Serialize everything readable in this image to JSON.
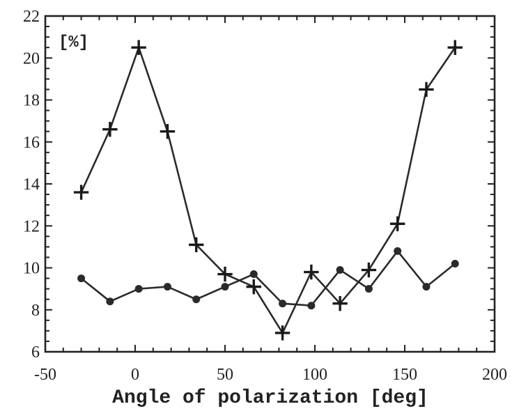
{
  "chart_data": {
    "type": "line",
    "title": "",
    "xlabel": "Angle of polarization [deg]",
    "ylabel": "[%]",
    "xlim": [
      -50,
      200
    ],
    "ylim": [
      6,
      22
    ],
    "x_ticks": [
      -50,
      0,
      50,
      100,
      150,
      200
    ],
    "x_tick_labels": [
      "-50",
      "0",
      "50",
      "100",
      "150",
      "200"
    ],
    "y_ticks": [
      6,
      8,
      10,
      12,
      14,
      16,
      18,
      20,
      22
    ],
    "y_tick_labels": [
      "6",
      "8",
      "10",
      "12",
      "14",
      "16",
      "18",
      "20",
      "22"
    ],
    "grid": false,
    "legend": "none",
    "series": [
      {
        "marker": "plus",
        "x": [
          -30,
          -14,
          2,
          18,
          34,
          50,
          66,
          82,
          98,
          114,
          130,
          146,
          162,
          178
        ],
        "values": [
          13.6,
          16.6,
          20.5,
          16.5,
          11.1,
          9.7,
          9.1,
          6.9,
          9.8,
          8.3,
          9.9,
          12.1,
          18.5,
          20.5
        ]
      },
      {
        "marker": "circle",
        "x": [
          -30,
          -14,
          2,
          18,
          34,
          50,
          66,
          82,
          98,
          114,
          130,
          146,
          162,
          178
        ],
        "values": [
          9.5,
          8.4,
          9.0,
          9.1,
          8.5,
          9.1,
          9.7,
          8.3,
          8.2,
          9.9,
          9.0,
          10.8,
          9.1,
          10.2
        ]
      }
    ]
  }
}
